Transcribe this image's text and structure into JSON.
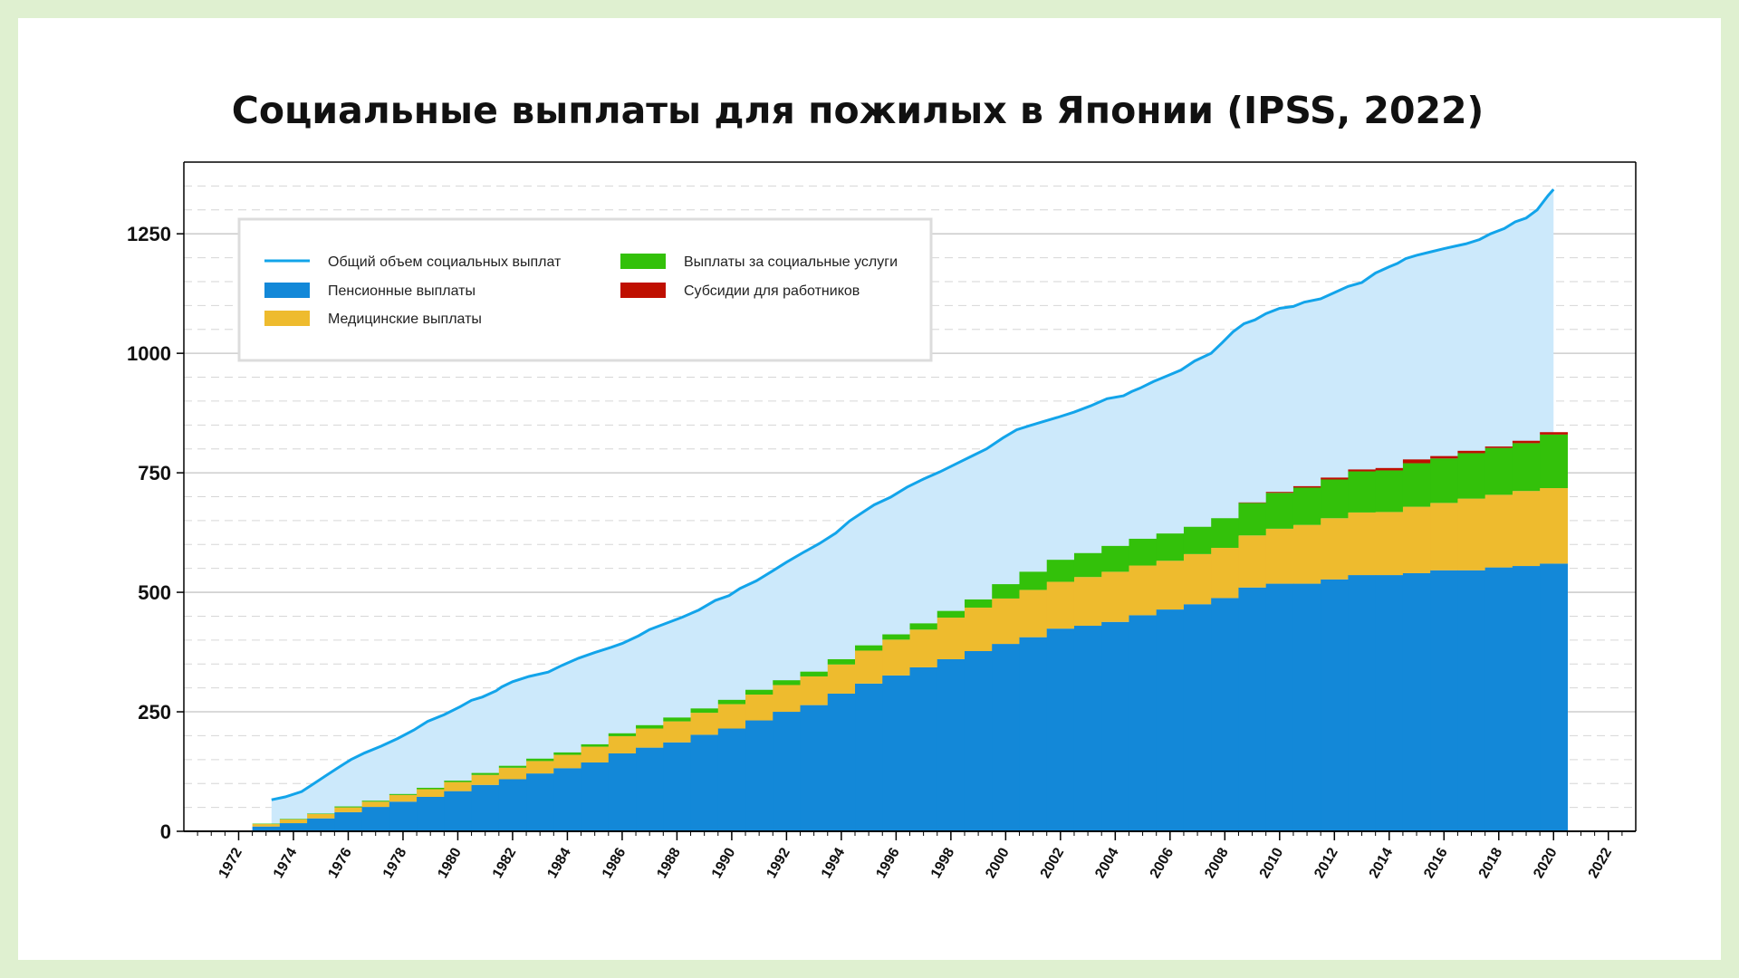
{
  "title": "Социальные выплаты для пожилых в Японии (IPSS, 2022)",
  "chart_data": {
    "type": "area",
    "xlim": [
      1970,
      2023
    ],
    "ylim": [
      0,
      1400
    ],
    "yticks": [
      0,
      250,
      500,
      750,
      1000,
      1250
    ],
    "xticks": [
      1972,
      1974,
      1976,
      1978,
      1980,
      1982,
      1984,
      1986,
      1988,
      1990,
      1992,
      1994,
      1996,
      1998,
      2000,
      2002,
      2004,
      2006,
      2008,
      2010,
      2012,
      2014,
      2016,
      2018,
      2020,
      2022
    ],
    "grid": true,
    "legend_position": "top-left",
    "years": [
      1973,
      1974,
      1975,
      1976,
      1977,
      1978,
      1979,
      1980,
      1981,
      1982,
      1983,
      1984,
      1985,
      1986,
      1987,
      1988,
      1989,
      1990,
      1991,
      1992,
      1993,
      1994,
      1995,
      1996,
      1997,
      1998,
      1999,
      2000,
      2001,
      2002,
      2003,
      2004,
      2005,
      2006,
      2007,
      2008,
      2009,
      2010,
      2011,
      2012,
      2013,
      2014,
      2015,
      2016,
      2017,
      2018,
      2019,
      2020
    ],
    "series": [
      {
        "name": "Пенсионные выплаты",
        "color": "#1388d8",
        "values": [
          10,
          17,
          27,
          40,
          51,
          62,
          72,
          84,
          97,
          109,
          121,
          132,
          144,
          163,
          175,
          186,
          202,
          215,
          232,
          250,
          264,
          288,
          309,
          326,
          343,
          360,
          377,
          392,
          406,
          424,
          430,
          438,
          452,
          464,
          475,
          488,
          510,
          518,
          518,
          527,
          536,
          536,
          540,
          546,
          546,
          552,
          555,
          560
        ]
      },
      {
        "name": "Медицинские выплаты",
        "color": "#eebb2e",
        "values": [
          5,
          8,
          9,
          10,
          11,
          14,
          16,
          19,
          21,
          24,
          26,
          28,
          33,
          36,
          40,
          44,
          46,
          51,
          54,
          56,
          60,
          61,
          69,
          75,
          79,
          87,
          91,
          95,
          99,
          98,
          102,
          105,
          104,
          102,
          105,
          105,
          109,
          115,
          123,
          128,
          131,
          132,
          139,
          141,
          150,
          152,
          157,
          158
        ]
      },
      {
        "name": "Выплаты за социальные услуги",
        "color": "#33c10a",
        "values": [
          1,
          1,
          1,
          2,
          2,
          2,
          3,
          3,
          4,
          4,
          5,
          5,
          5,
          6,
          7,
          8,
          9,
          9,
          10,
          10,
          10,
          11,
          11,
          11,
          13,
          14,
          17,
          30,
          38,
          46,
          50,
          54,
          56,
          57,
          57,
          62,
          68,
          75,
          78,
          81,
          86,
          87,
          91,
          93,
          95,
          98,
          100,
          112
        ]
      },
      {
        "name": "Субсидии для работников",
        "color": "#bf0f00",
        "values": [
          0,
          0,
          0,
          0,
          0,
          0,
          0,
          0,
          0,
          0,
          0,
          0,
          0,
          0,
          0,
          0,
          0,
          0,
          0,
          0,
          0,
          0,
          0,
          0,
          0,
          0,
          0,
          0,
          0,
          0,
          0,
          0,
          0,
          0,
          0,
          0,
          1,
          2,
          3,
          4,
          4,
          5,
          8,
          5,
          5,
          3,
          5,
          5
        ]
      },
      {
        "name": "Общий объем социальных выплат",
        "color": "#12a4ea",
        "x": [
          1973.2,
          1973.7,
          1974.3,
          1974.7,
          1975.2,
          1975.6,
          1976.1,
          1976.6,
          1977.2,
          1977.8,
          1978.4,
          1978.9,
          1979.5,
          1980.1,
          1980.5,
          1980.9,
          1981.4,
          1981.6,
          1982.0,
          1982.6,
          1983.3,
          1983.8,
          1984.4,
          1985.0,
          1985.6,
          1986.0,
          1986.6,
          1987.0,
          1987.6,
          1988.2,
          1988.8,
          1989.4,
          1989.9,
          1990.3,
          1990.9,
          1991.5,
          1992.0,
          1992.6,
          1993.2,
          1993.8,
          1994.3,
          1994.8,
          1995.2,
          1995.8,
          1996.4,
          1997.0,
          1997.6,
          1998.2,
          1998.8,
          1999.3,
          1999.9,
          2000.4,
          2000.9,
          2001.3,
          2001.9,
          2002.5,
          2003.1,
          2003.7,
          2004.3,
          2004.6,
          2004.9,
          2005.4,
          2005.9,
          2006.4,
          2006.9,
          2007.5,
          2007.9,
          2008.3,
          2008.7,
          2009.1,
          2009.5,
          2010.0,
          2010.5,
          2010.9,
          2011.5,
          2012.0,
          2012.5,
          2013.0,
          2013.5,
          2014.0,
          2014.3,
          2014.6,
          2015.0,
          2015.5,
          2016.0,
          2016.4,
          2016.8,
          2017.3,
          2017.7,
          2018.2,
          2018.6,
          2019.0,
          2019.4,
          2019.8,
          2020.0
        ],
        "y": [
          66,
          72,
          83,
          98,
          117,
          132,
          150,
          164,
          178,
          194,
          212,
          230,
          244,
          261,
          274,
          281,
          294,
          302,
          313,
          324,
          333,
          347,
          362,
          374,
          385,
          393,
          409,
          422,
          435,
          448,
          463,
          483,
          493,
          508,
          524,
          545,
          563,
          583,
          602,
          624,
          649,
          668,
          683,
          699,
          720,
          737,
          752,
          769,
          786,
          800,
          823,
          840,
          849,
          856,
          866,
          877,
          890,
          905,
          911,
          920,
          927,
          941,
          953,
          965,
          984,
          1000,
          1022,
          1045,
          1062,
          1070,
          1083,
          1094,
          1098,
          1107,
          1114,
          1127,
          1140,
          1148,
          1168,
          1181,
          1188,
          1198,
          1205,
          1212,
          1219,
          1224,
          1229,
          1238,
          1250,
          1261,
          1275,
          1283,
          1300,
          1330,
          1343
        ]
      }
    ]
  },
  "legend": {
    "items": [
      {
        "label": "Общий объем социальных выплат",
        "color": "#12a4ea",
        "kind": "line"
      },
      {
        "label": "Пенсионные выплаты",
        "color": "#1388d8",
        "kind": "box"
      },
      {
        "label": "Медицинские выплаты",
        "color": "#eebb2e",
        "kind": "box"
      },
      {
        "label": "Выплаты за социальные услуги",
        "color": "#33c10a",
        "kind": "box"
      },
      {
        "label": "Субсидии для работников",
        "color": "#bf0f00",
        "kind": "box"
      }
    ]
  }
}
